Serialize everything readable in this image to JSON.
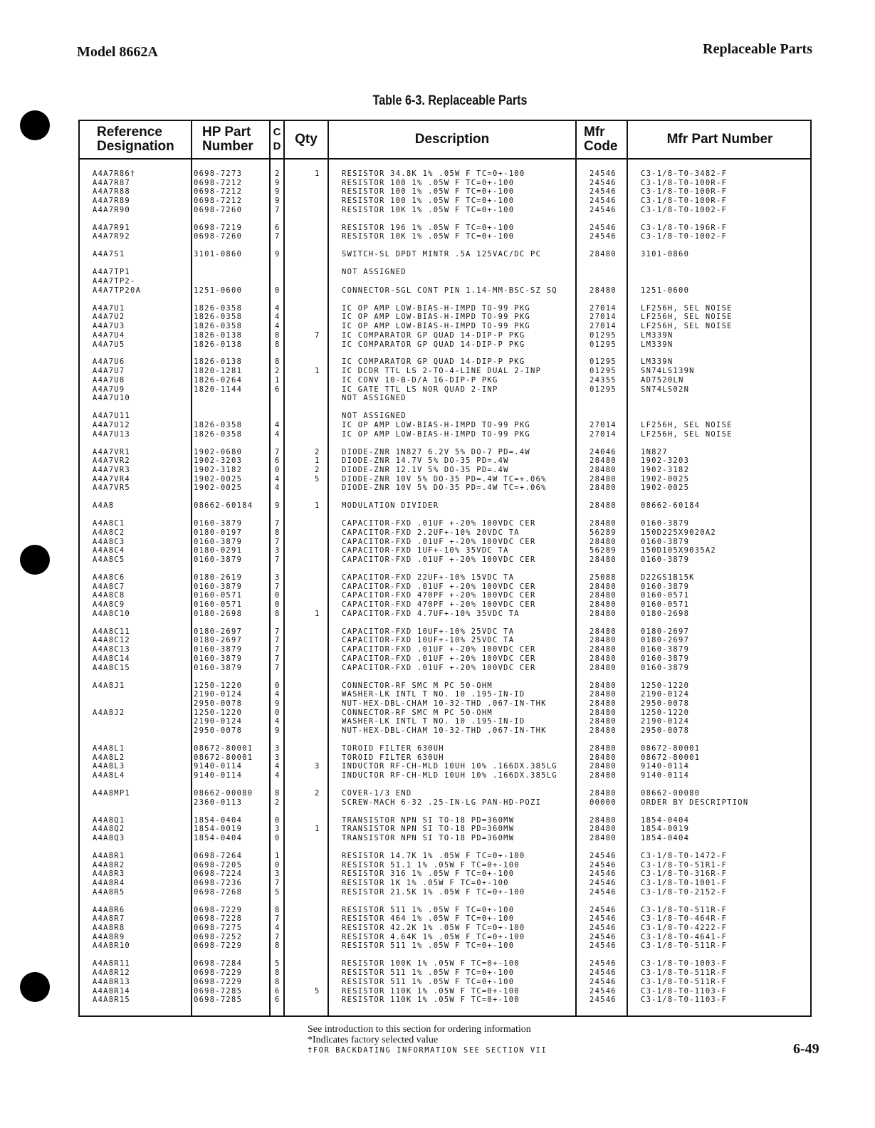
{
  "header": {
    "model": "Model 8662A",
    "section": "Replaceable Parts"
  },
  "table": {
    "title": "Table 6-3. Replaceable Parts",
    "columns": {
      "ref": "Reference Designation",
      "part": "HP Part Number",
      "cd": "C D",
      "qty": "Qty",
      "desc": "Description",
      "mfr": "Mfr Code",
      "mpn": "Mfr Part Number"
    },
    "groups": [
      [
        [
          "A4A7R86†",
          "0698-7273",
          "2",
          "1",
          "RESISTOR 34.8K 1% .05W F TC=0+-100",
          "24546",
          "C3-1/8-T0-3482-F"
        ],
        [
          "A4A7R87",
          "0698-7212",
          "9",
          "",
          "RESISTOR 100 1% .05W F TC=0+-100",
          "24546",
          "C3-1/8-T0-100R-F"
        ],
        [
          "A4A7R88",
          "0698-7212",
          "9",
          "",
          "RESISTOR 100 1% .05W F TC=0+-100",
          "24546",
          "C3-1/8-T0-100R-F"
        ],
        [
          "A4A7R89",
          "0698-7212",
          "9",
          "",
          "RESISTOR 100 1% .05W F TC=0+-100",
          "24546",
          "C3-1/8-T0-100R-F"
        ],
        [
          "A4A7R90",
          "0698-7260",
          "7",
          "",
          "RESISTOR 10K 1% .05W F TC=0+-100",
          "24546",
          "C3-1/8-T0-1002-F"
        ]
      ],
      [
        [
          "A4A7R91",
          "0698-7219",
          "6",
          "",
          "RESISTOR 196 1% .05W F TC=0+-100",
          "24546",
          "C3-1/8-T0-196R-F"
        ],
        [
          "A4A7R92",
          "0698-7260",
          "7",
          "",
          "RESISTOR 10K 1% .05W F TC=0+-100",
          "24546",
          "C3-1/8-T0-1002-F"
        ]
      ],
      [
        [
          "A4A7S1",
          "3101-0860",
          "9",
          "",
          "SWITCH-SL DPDT MINTR .5A 125VAC/DC PC",
          "28480",
          "3101-0860"
        ]
      ],
      [
        [
          "A4A7TP1",
          "",
          "",
          "",
          "NOT ASSIGNED",
          "",
          ""
        ],
        [
          "A4A7TP2-",
          "",
          "",
          "",
          "",
          "",
          ""
        ],
        [
          "A4A7TP20A",
          "1251-0600",
          "0",
          "",
          "CONNECTOR-SGL CONT PIN 1.14-MM-BSC-SZ SQ",
          "28480",
          "1251-0600"
        ]
      ],
      [
        [
          "A4A7U1",
          "1826-0358",
          "4",
          "",
          "IC OP AMP LOW-BIAS-H-IMPD TO-99 PKG",
          "27014",
          "LF256H, SEL NOISE"
        ],
        [
          "A4A7U2",
          "1826-0358",
          "4",
          "",
          "IC OP AMP LOW-BIAS-H-IMPD TO-99 PKG",
          "27014",
          "LF256H, SEL NOISE"
        ],
        [
          "A4A7U3",
          "1826-0358",
          "4",
          "",
          "IC OP AMP LOW-BIAS-H-IMPD TO-99 PKG",
          "27014",
          "LF256H, SEL NOISE"
        ],
        [
          "A4A7U4",
          "1826-0138",
          "8",
          "7",
          "IC COMPARATOR GP QUAD 14-DIP-P PKG",
          "01295",
          "LM339N"
        ],
        [
          "A4A7U5",
          "1826-0138",
          "8",
          "",
          "IC COMPARATOR GP QUAD 14-DIP-P PKG",
          "01295",
          "LM339N"
        ]
      ],
      [
        [
          "A4A7U6",
          "1826-0138",
          "8",
          "",
          "IC COMPARATOR GP QUAD 14-DIP-P PKG",
          "01295",
          "LM339N"
        ],
        [
          "A4A7U7",
          "1820-1281",
          "2",
          "1",
          "IC DCDR TTL LS 2-TO-4-LINE DUAL 2-INP",
          "01295",
          "SN74LS139N"
        ],
        [
          "A4A7U8",
          "1826-0264",
          "1",
          "",
          "IC CONV 10-B-D/A 16-DIP-P PKG",
          "24355",
          "AD7520LN"
        ],
        [
          "A4A7U9",
          "1820-1144",
          "6",
          "",
          "IC GATE TTL LS NOR QUAD 2-INP",
          "01295",
          "SN74LS02N"
        ],
        [
          "A4A7U10",
          "",
          "",
          "",
          "NOT ASSIGNED",
          "",
          ""
        ]
      ],
      [
        [
          "A4A7U11",
          "",
          "",
          "",
          "NOT ASSIGNED",
          "",
          ""
        ],
        [
          "A4A7U12",
          "1826-0358",
          "4",
          "",
          "IC OP AMP LOW-BIAS-H-IMPD TO-99 PKG",
          "27014",
          "LF256H, SEL NOISE"
        ],
        [
          "A4A7U13",
          "1826-0358",
          "4",
          "",
          "IC OP AMP LOW-BIAS-H-IMPD TO-99 PKG",
          "27014",
          "LF256H, SEL NOISE"
        ]
      ],
      [
        [
          "A4A7VR1",
          "1902-0680",
          "7",
          "2",
          "DIODE-ZNR 1N827 6.2V 5% DO-7 PD=.4W",
          "24046",
          "1N827"
        ],
        [
          "A4A7VR2",
          "1902-3203",
          "6",
          "1",
          "DIODE-ZNR 14.7V 5% DO-35 PD=.4W",
          "28480",
          "1902-3203"
        ],
        [
          "A4A7VR3",
          "1902-3182",
          "0",
          "2",
          "DIODE-ZNR 12.1V 5% DO-35 PD=.4W",
          "28480",
          "1902-3182"
        ],
        [
          "A4A7VR4",
          "1902-0025",
          "4",
          "5",
          "DIODE-ZNR 10V 5% DO-35 PD=.4W TC=+.06%",
          "28480",
          "1902-0025"
        ],
        [
          "A4A7VR5",
          "1902-0025",
          "4",
          "",
          "DIODE-ZNR 10V 5% DO-35 PD=.4W TC=+.06%",
          "28480",
          "1902-0025"
        ]
      ],
      [
        [
          "A4A8",
          "08662-60184",
          "9",
          "1",
          "MODULATION DIVIDER",
          "28480",
          "08662-60184"
        ]
      ],
      [
        [
          "A4A8C1",
          "0160-3879",
          "7",
          "",
          "CAPACITOR-FXD .01UF +-20% 100VDC CER",
          "28480",
          "0160-3879"
        ],
        [
          "A4A8C2",
          "0180-0197",
          "8",
          "",
          "CAPACITOR-FXD 2.2UF+-10% 20VDC TA",
          "56289",
          "150D225X9020A2"
        ],
        [
          "A4A8C3",
          "0160-3879",
          "7",
          "",
          "CAPACITOR-FXD .01UF +-20% 100VDC CER",
          "28480",
          "0160-3879"
        ],
        [
          "A4A8C4",
          "0180-0291",
          "3",
          "",
          "CAPACITOR-FXD 1UF+-10% 35VDC TA",
          "56289",
          "150D105X9035A2"
        ],
        [
          "A4A8C5",
          "0160-3879",
          "7",
          "",
          "CAPACITOR-FXD .01UF +-20% 100VDC CER",
          "28480",
          "0160-3879"
        ]
      ],
      [
        [
          "A4A8C6",
          "0180-2619",
          "3",
          "",
          "CAPACITOR-FXD 22UF+-10% 15VDC TA",
          "25088",
          "D22GS1B15K"
        ],
        [
          "A4A8C7",
          "0160-3879",
          "7",
          "",
          "CAPACITOR-FXD .01UF +-20% 100VDC CER",
          "28480",
          "0160-3879"
        ],
        [
          "A4A8C8",
          "0160-0571",
          "0",
          "",
          "CAPACITOR-FXD 470PF +-20% 100VDC CER",
          "28480",
          "0160-0571"
        ],
        [
          "A4A8C9",
          "0160-0571",
          "0",
          "",
          "CAPACITOR-FXD 470PF +-20% 100VDC CER",
          "28480",
          "0160-0571"
        ],
        [
          "A4A8C10",
          "0180-2698",
          "8",
          "1",
          "CAPACITOR-FXD 4.7UF+-10% 35VDC TA",
          "28480",
          "0180-2698"
        ]
      ],
      [
        [
          "A4A8C11",
          "0180-2697",
          "7",
          "",
          "CAPACITOR-FXD 10UF+-10% 25VDC TA",
          "28480",
          "0180-2697"
        ],
        [
          "A4A8C12",
          "0180-2697",
          "7",
          "",
          "CAPACITOR-FXD 10UF+-10% 25VDC TA",
          "28480",
          "0180-2697"
        ],
        [
          "A4A8C13",
          "0160-3879",
          "7",
          "",
          "CAPACITOR-FXD .01UF +-20% 100VDC CER",
          "28480",
          "0160-3879"
        ],
        [
          "A4A8C14",
          "0160-3879",
          "7",
          "",
          "CAPACITOR-FXD .01UF +-20% 100VDC CER",
          "28480",
          "0160-3879"
        ],
        [
          "A4A8C15",
          "0160-3879",
          "7",
          "",
          "CAPACITOR-FXD .01UF +-20% 100VDC CER",
          "28480",
          "0160-3879"
        ]
      ],
      [
        [
          "A4A8J1",
          "1250-1220",
          "0",
          "",
          "CONNECTOR-RF SMC M PC 50-OHM",
          "28480",
          "1250-1220"
        ],
        [
          "",
          "2190-0124",
          "4",
          "",
          "WASHER-LK INTL T NO. 10 .195-IN-ID",
          "28480",
          "2190-0124"
        ],
        [
          "",
          "2950-0078",
          "9",
          "",
          "NUT-HEX-DBL-CHAM 10-32-THD .067-IN-THK",
          "28480",
          "2950-0078"
        ],
        [
          "A4A8J2",
          "1250-1220",
          "0",
          "",
          "CONNECTOR-RF SMC M PC 50-OHM",
          "28480",
          "1250-1220"
        ],
        [
          "",
          "2190-0124",
          "4",
          "",
          "WASHER-LK INTL T NO. 10 .195-IN-ID",
          "28480",
          "2190-0124"
        ],
        [
          "",
          "2950-0078",
          "9",
          "",
          "NUT-HEX-DBL-CHAM 10-32-THD .067-IN-THK",
          "28480",
          "2950-0078"
        ]
      ],
      [
        [
          "A4A8L1",
          "08672-80001",
          "3",
          "",
          "TOROID FILTER 630UH",
          "28480",
          "08672-80001"
        ],
        [
          "A4A8L2",
          "08672-80001",
          "3",
          "",
          "TOROID FILTER 630UH",
          "28480",
          "08672-80001"
        ],
        [
          "A4A8L3",
          "9140-0114",
          "4",
          "3",
          "INDUCTOR RF-CH-MLD 10UH 10% .166DX.385LG",
          "28480",
          "9140-0114"
        ],
        [
          "A4A8L4",
          "9140-0114",
          "4",
          "",
          "INDUCTOR RF-CH-MLD 10UH 10% .166DX.385LG",
          "28480",
          "9140-0114"
        ]
      ],
      [
        [
          "A4A8MP1",
          "08662-00080",
          "8",
          "2",
          "COVER-1/3 END",
          "28480",
          "08662-00080"
        ],
        [
          "",
          "2360-0113",
          "2",
          "",
          "SCREW-MACH 6-32 .25-IN-LG PAN-HD-POZI",
          "00000",
          "ORDER BY DESCRIPTION"
        ]
      ],
      [
        [
          "A4A8Q1",
          "1854-0404",
          "0",
          "",
          "TRANSISTOR NPN SI TO-18 PD=360MW",
          "28480",
          "1854-0404"
        ],
        [
          "A4A8Q2",
          "1854-0019",
          "3",
          "1",
          "TRANSISTOR NPN SI TO-18 PD=360MW",
          "28480",
          "1854-0019"
        ],
        [
          "A4A8Q3",
          "1854-0404",
          "0",
          "",
          "TRANSISTOR NPN SI TO-18 PD=360MW",
          "28480",
          "1854-0404"
        ]
      ],
      [
        [
          "A4A8R1",
          "0698-7264",
          "1",
          "",
          "RESISTOR 14.7K 1% .05W F TC=0+-100",
          "24546",
          "C3-1/8-T0-1472-F"
        ],
        [
          "A4A8R2",
          "0698-7205",
          "0",
          "",
          "RESISTOR 51.1 1% .05W F TC=0+-100",
          "24546",
          "C3-1/8-T0-51R1-F"
        ],
        [
          "A4A8R3",
          "0698-7224",
          "3",
          "",
          "RESISTOR 316 1% .05W F TC=0+-100",
          "24546",
          "C3-1/8-T0-316R-F"
        ],
        [
          "A4A8R4",
          "0698-7236",
          "7",
          "",
          "RESISTOR 1K 1% .05W F TC=0+-100",
          "24546",
          "C3-1/8-T0-1001-F"
        ],
        [
          "A4A8R5",
          "0698-7268",
          "5",
          "",
          "RESISTOR 21.5K 1% .05W F TC=0+-100",
          "24546",
          "C3-1/8-T0-2152-F"
        ]
      ],
      [
        [
          "A4A8R6",
          "0698-7229",
          "8",
          "",
          "RESISTOR 511 1% .05W F TC=0+-100",
          "24546",
          "C3-1/8-T0-511R-F"
        ],
        [
          "A4A8R7",
          "0698-7228",
          "7",
          "",
          "RESISTOR 464 1% .05W F TC=0+-100",
          "24546",
          "C3-1/8-T0-464R-F"
        ],
        [
          "A4A8R8",
          "0698-7275",
          "4",
          "",
          "RESISTOR 42.2K 1% .05W F TC=0+-100",
          "24546",
          "C3-1/8-T0-4222-F"
        ],
        [
          "A4A8R9",
          "0698-7252",
          "7",
          "",
          "RESISTOR 4.64K 1% .05W F TC=0+-100",
          "24546",
          "C3-1/8-T0-4641-F"
        ],
        [
          "A4A8R10",
          "0698-7229",
          "8",
          "",
          "RESISTOR 511 1% .05W F TC=0+-100",
          "24546",
          "C3-1/8-T0-511R-F"
        ]
      ],
      [
        [
          "A4A8R11",
          "0698-7284",
          "5",
          "",
          "RESISTOR 100K 1% .05W F TC=0+-100",
          "24546",
          "C3-1/8-T0-1003-F"
        ],
        [
          "A4A8R12",
          "0698-7229",
          "8",
          "",
          "RESISTOR 511 1% .05W F TC=0+-100",
          "24546",
          "C3-1/8-T0-511R-F"
        ],
        [
          "A4A8R13",
          "0698-7229",
          "8",
          "",
          "RESISTOR 511 1% .05W F TC=0+-100",
          "24546",
          "C3-1/8-T0-511R-F"
        ],
        [
          "A4A8R14",
          "0698-7285",
          "6",
          "5",
          "RESISTOR 110K 1% .05W F TC=0+-100",
          "24546",
          "C3-1/8-T0-1103-F"
        ],
        [
          "A4A8R15",
          "0698-7285",
          "6",
          "",
          "RESISTOR 110K 1% .05W F TC=0+-100",
          "24546",
          "C3-1/8-T0-1103-F"
        ]
      ]
    ]
  },
  "footer": {
    "note1": "See introduction to this section for ordering information",
    "note2": "*Indicates factory selected value",
    "note3": "†FOR BACKDATING INFORMATION SEE SECTION VII",
    "page": "6-49"
  }
}
